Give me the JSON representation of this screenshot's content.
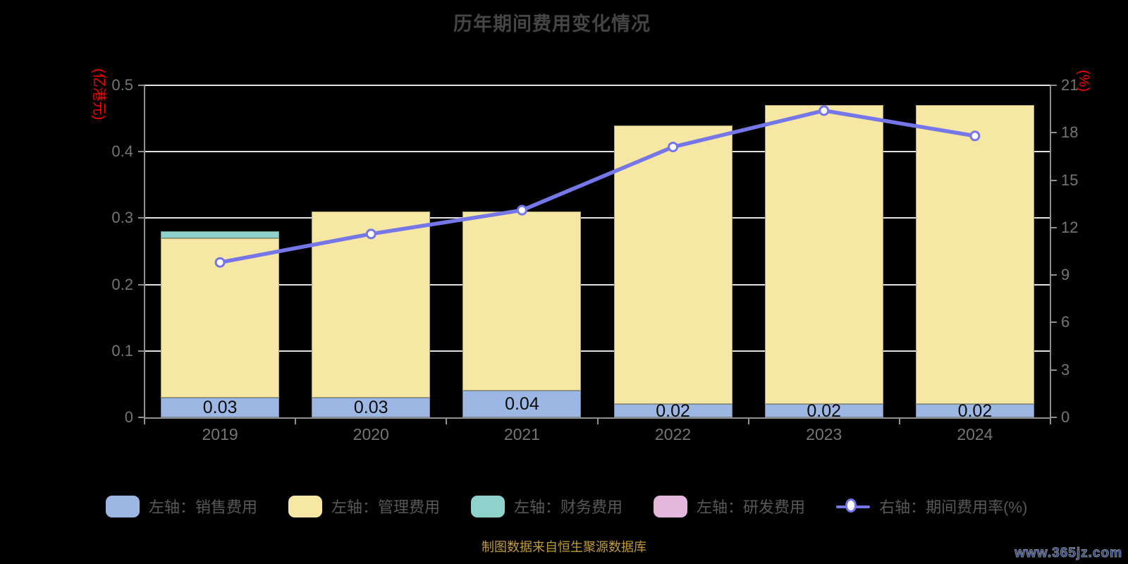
{
  "title": "历年期间费用变化情况",
  "source_note": "制图数据来自恒生聚源数据库",
  "watermark": "www.365jz.com",
  "colors": {
    "background": "#000000",
    "sales_bar": "#9CB7E3",
    "admin_bar": "#F7E7A4",
    "finance_bar": "#8FD1CB",
    "rd_bar": "#E3B8DC",
    "rate_line": "#7577E8",
    "axis_name_red": "#FF0000",
    "gridline": "#E2E2E2",
    "axis_gray": "#8F8F8F",
    "tick_text": "#757575",
    "title_text": "#454545",
    "footer_gold": "#BF9B3D",
    "watermark_blue": "#1D3F96"
  },
  "left_axis": {
    "name": "(亿港元)",
    "ticks": [
      "0",
      "0.1",
      "0.2",
      "0.3",
      "0.4",
      "0.5"
    ],
    "range": [
      0,
      0.5
    ]
  },
  "right_axis": {
    "name": "(%)",
    "ticks": [
      "0",
      "3",
      "6",
      "9",
      "12",
      "15",
      "18",
      "21"
    ],
    "range": [
      0,
      21
    ]
  },
  "legend": [
    {
      "label": "左轴：销售费用",
      "color": "#9CB7E3",
      "type": "bar"
    },
    {
      "label": "左轴：管理费用",
      "color": "#F7E7A4",
      "type": "bar"
    },
    {
      "label": "左轴：财务费用",
      "color": "#8FD1CB",
      "type": "bar"
    },
    {
      "label": "左轴：研发费用",
      "color": "#E3B8DC",
      "type": "bar"
    },
    {
      "label": "右轴：期间费用率(%)",
      "color": "#7577E8",
      "type": "line"
    }
  ],
  "chart_data": {
    "type": "bar",
    "subtype": "stacked-bars-with-line",
    "title": "历年期间费用变化情况",
    "categories": [
      "2019",
      "2020",
      "2021",
      "2022",
      "2023",
      "2024"
    ],
    "series": [
      {
        "name": "销售费用",
        "type": "bar",
        "axis": "left",
        "color": "#9CB7E3",
        "values": [
          0.03,
          0.03,
          0.04,
          0.02,
          0.02,
          0.02
        ],
        "labels": [
          "0.03",
          "0.03",
          "0.04",
          "0.02",
          "0.02",
          "0.02"
        ]
      },
      {
        "name": "管理费用",
        "type": "bar",
        "axis": "left",
        "color": "#F7E7A4",
        "values": [
          0.24,
          0.28,
          0.27,
          0.42,
          0.45,
          0.45
        ]
      },
      {
        "name": "财务费用",
        "type": "bar",
        "axis": "left",
        "color": "#8FD1CB",
        "values": [
          0.01,
          0,
          0,
          0,
          0,
          0
        ]
      },
      {
        "name": "研发费用",
        "type": "bar",
        "axis": "left",
        "color": "#E3B8DC",
        "values": [
          0,
          0,
          0,
          0,
          0,
          0
        ]
      },
      {
        "name": "期间费用率(%)",
        "type": "line",
        "axis": "right",
        "color": "#7577E8",
        "values": [
          9.8,
          11.6,
          13.1,
          17.1,
          19.4,
          17.8
        ]
      }
    ],
    "bar_totals": [
      0.28,
      0.31,
      0.31,
      0.44,
      0.47,
      0.47
    ],
    "left_ylim": [
      0,
      0.5
    ],
    "right_ylim": [
      0,
      21
    ],
    "grid": true,
    "legend_position": "bottom"
  }
}
